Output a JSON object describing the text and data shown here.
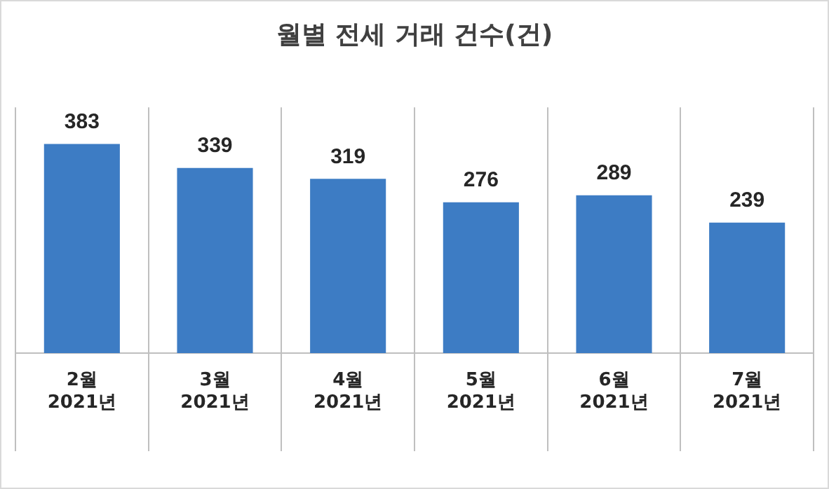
{
  "chart_data": {
    "type": "bar",
    "title": "월별 전세 거래 건수(건)",
    "categories": [
      "2월\n2021년",
      "3월\n2021년",
      "4월\n2021년",
      "5월\n2021년",
      "6월\n2021년",
      "7월\n2021년"
    ],
    "values": [
      383,
      339,
      319,
      276,
      289,
      239
    ],
    "color": "#3d7cc4",
    "data_labels": true,
    "grid": "x",
    "legend": false
  }
}
